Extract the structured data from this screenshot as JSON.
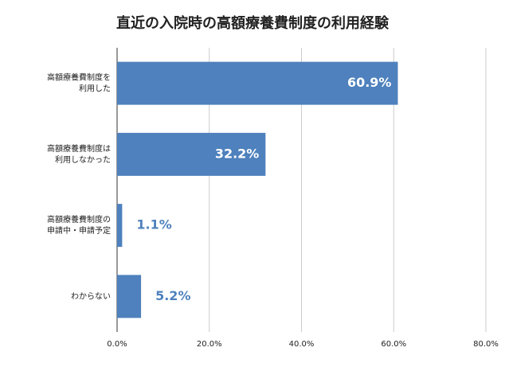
{
  "chart_data": {
    "type": "bar",
    "orientation": "horizontal",
    "title": "直近の入院時の高額療養費制度の利用経験",
    "categories": [
      "高額療養費制度を利用した",
      "高額療養費制度は利用しなかった",
      "高額療養費制度の申請中・申請予定",
      "わからない"
    ],
    "values": [
      60.9,
      32.2,
      1.1,
      5.2
    ],
    "value_labels": [
      "60.9%",
      "32.2%",
      "1.1%",
      "5.2%"
    ],
    "color": "#4e81bd",
    "xlim": [
      0,
      80
    ],
    "xticks": [
      {
        "value": 0,
        "label": "0.0%"
      },
      {
        "value": 20,
        "label": "20.0%"
      },
      {
        "value": 40,
        "label": "40.0%"
      },
      {
        "value": 60,
        "label": "60.0%"
      },
      {
        "value": 80,
        "label": "80.0%"
      }
    ],
    "grid": true
  }
}
